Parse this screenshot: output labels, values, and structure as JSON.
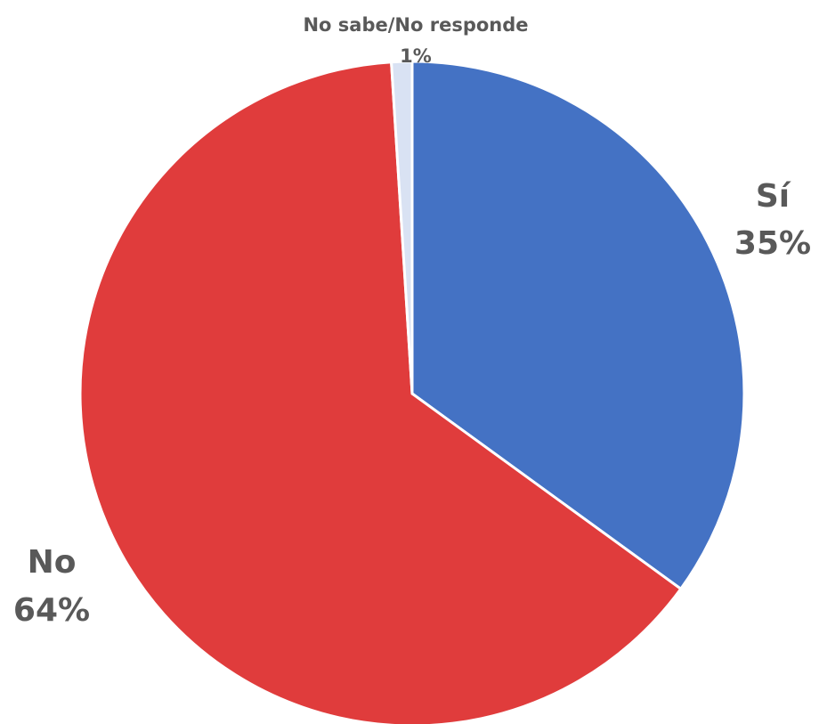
{
  "chart_data": {
    "type": "pie",
    "categories": [
      "Sí",
      "No",
      "No sabe/No responde"
    ],
    "values": [
      35,
      64,
      1
    ],
    "value_labels": [
      "35%",
      "64%",
      "1%"
    ],
    "colors": [
      "#4472C4",
      "#E03C3C",
      "#D9E2F3"
    ],
    "start_angle_deg": 0,
    "direction": "clockwise",
    "legend": "none",
    "title": ""
  }
}
